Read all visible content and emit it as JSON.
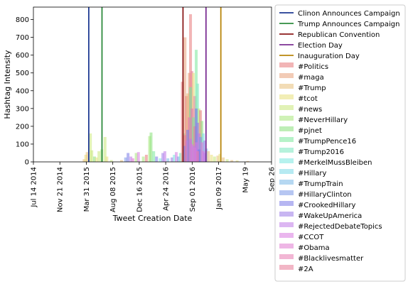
{
  "chart_data": {
    "type": "bar",
    "title": "",
    "xlabel": "Tweet Creation Date",
    "ylabel": "Hashtag Intensity",
    "x_ticks": [
      {
        "label": "Jul 14 2014",
        "date": "2014-07-14"
      },
      {
        "label": "Nov 21 2014",
        "date": "2014-11-21"
      },
      {
        "label": "Mar 31 2015",
        "date": "2015-03-31"
      },
      {
        "label": "Aug 08 2015",
        "date": "2015-08-08"
      },
      {
        "label": "Dec 16 2015",
        "date": "2015-12-16"
      },
      {
        "label": "Apr 24 2016",
        "date": "2016-04-24"
      },
      {
        "label": "Sep 01 2016",
        "date": "2016-09-01"
      },
      {
        "label": "Jan 09 2017",
        "date": "2017-01-09"
      },
      {
        "label": "May 19",
        "date": "2017-05-19"
      },
      {
        "label": "Sep 26",
        "date": "2017-09-26"
      }
    ],
    "xlim": [
      "2014-07-14",
      "2017-09-26"
    ],
    "ylim": [
      0,
      870
    ],
    "y_ticks": [
      0,
      100,
      200,
      300,
      400,
      500,
      600,
      700,
      800
    ],
    "grid": false,
    "legend_position": "outside-right",
    "events": [
      {
        "name": "Clinon Announces Campaign",
        "date": "2015-04-12",
        "color": "#1f3a93"
      },
      {
        "name": "Trump Announces Campaign",
        "date": "2015-06-16",
        "color": "#2e8b3e"
      },
      {
        "name": "Republican Convention",
        "date": "2016-07-18",
        "color": "#8b1a1a"
      },
      {
        "name": "Election Day",
        "date": "2016-11-08",
        "color": "#7b2f93"
      },
      {
        "name": "Inauguration Day",
        "date": "2017-01-20",
        "color": "#b8860b"
      }
    ],
    "series": [
      {
        "name": "#Politics",
        "color": "#e8787a",
        "values": [
          [
            0,
            0,
            0,
            5,
            0,
            0,
            0,
            0,
            0,
            8,
            10,
            0,
            0,
            0,
            0,
            0,
            0,
            0,
            0,
            0,
            20,
            25,
            30,
            40,
            20,
            15,
            30,
            35,
            40,
            35,
            35,
            40,
            30,
            25,
            35,
            45,
            55,
            25,
            10,
            5,
            0,
            0,
            0,
            0,
            0,
            0,
            0,
            0,
            0,
            0
          ]
        ]
      },
      {
        "name": "#maga",
        "color": "#e8a07a",
        "values": [
          [
            0,
            0,
            0,
            0,
            0,
            0,
            0,
            0,
            0,
            0,
            0,
            0,
            0,
            0,
            0,
            0,
            0,
            0,
            0,
            0,
            0,
            0,
            0,
            0,
            0,
            0,
            0,
            0,
            0,
            0,
            0,
            0,
            0,
            0,
            0,
            0,
            0,
            0,
            0,
            0,
            0,
            0,
            0,
            0,
            0,
            0,
            0,
            0,
            0,
            0
          ]
        ]
      },
      {
        "name": "#Trump",
        "color": "#e8c07a",
        "values": [
          [
            0
          ]
        ]
      },
      {
        "name": "#tcot",
        "color": "#e8e07a",
        "values": [
          [
            0
          ]
        ]
      },
      {
        "name": "#news",
        "color": "#c8e87a",
        "values": [
          [
            0
          ]
        ]
      },
      {
        "name": "#NeverHillary",
        "color": "#a8e87a",
        "values": [
          [
            0
          ]
        ]
      },
      {
        "name": "#pjnet",
        "color": "#88e07a",
        "values": [
          [
            0
          ]
        ]
      },
      {
        "name": "#TrumpPence16",
        "color": "#7ae89a",
        "values": [
          [
            0
          ]
        ]
      },
      {
        "name": "#Trump2016",
        "color": "#7ae8c0",
        "values": [
          [
            0
          ]
        ]
      },
      {
        "name": "#MerkelMussBleiben",
        "color": "#7ae8e0",
        "values": [
          [
            0
          ]
        ]
      },
      {
        "name": "#Hillary",
        "color": "#7ad8e8",
        "values": [
          [
            0
          ]
        ]
      },
      {
        "name": "#TrumpTrain",
        "color": "#7ab8e8",
        "values": [
          [
            0
          ]
        ]
      },
      {
        "name": "#HillaryClinton",
        "color": "#7a98e8",
        "values": [
          [
            0
          ]
        ]
      },
      {
        "name": "#CrookedHillary",
        "color": "#7a7ae8",
        "values": [
          [
            0
          ]
        ]
      },
      {
        "name": "#WakeUpAmerica",
        "color": "#9a7ae8",
        "values": [
          [
            0
          ]
        ]
      },
      {
        "name": "#RejectedDebateTopics",
        "color": "#c07ae8",
        "values": [
          [
            0
          ]
        ]
      },
      {
        "name": "#CCOT",
        "color": "#d87ae0",
        "values": [
          [
            0
          ]
        ]
      },
      {
        "name": "#Obama",
        "color": "#e07ad0",
        "values": [
          [
            0
          ]
        ]
      },
      {
        "name": "#Blacklivesmatter",
        "color": "#e87ab0",
        "values": [
          [
            0
          ]
        ]
      },
      {
        "name": "#2A",
        "color": "#e87a98",
        "values": [
          [
            0
          ]
        ]
      }
    ],
    "bars": [
      {
        "date": "2015-03-20",
        "value": 15,
        "s": 2
      },
      {
        "date": "2015-03-28",
        "value": 40,
        "s": 3
      },
      {
        "date": "2015-04-04",
        "value": 55,
        "s": 2
      },
      {
        "date": "2015-04-20",
        "value": 160,
        "s": 4
      },
      {
        "date": "2015-04-27",
        "value": 65,
        "s": 4
      },
      {
        "date": "2015-05-10",
        "value": 30,
        "s": 6
      },
      {
        "date": "2015-05-20",
        "value": 25,
        "s": 3
      },
      {
        "date": "2015-06-01",
        "value": 60,
        "s": 4
      },
      {
        "date": "2015-06-15",
        "value": 70,
        "s": 5
      },
      {
        "date": "2015-07-01",
        "value": 140,
        "s": 4
      },
      {
        "date": "2015-07-10",
        "value": 30,
        "s": 3
      },
      {
        "date": "2015-08-01",
        "value": 10,
        "s": 4
      },
      {
        "date": "2015-09-20",
        "value": 10,
        "s": 2
      },
      {
        "date": "2015-10-10",
        "value": 25,
        "s": 12
      },
      {
        "date": "2015-10-22",
        "value": 50,
        "s": 13
      },
      {
        "date": "2015-11-05",
        "value": 30,
        "s": 15
      },
      {
        "date": "2015-11-15",
        "value": 20,
        "s": 17
      },
      {
        "date": "2015-12-01",
        "value": 50,
        "s": 5
      },
      {
        "date": "2015-12-12",
        "value": 55,
        "s": 16
      },
      {
        "date": "2016-01-05",
        "value": 30,
        "s": 5
      },
      {
        "date": "2016-01-20",
        "value": 40,
        "s": 0
      },
      {
        "date": "2016-02-05",
        "value": 145,
        "s": 5
      },
      {
        "date": "2016-02-12",
        "value": 165,
        "s": 6
      },
      {
        "date": "2016-02-25",
        "value": 60,
        "s": 7
      },
      {
        "date": "2016-03-10",
        "value": 30,
        "s": 13
      },
      {
        "date": "2016-03-28",
        "value": 20,
        "s": 9
      },
      {
        "date": "2016-04-10",
        "value": 50,
        "s": 14
      },
      {
        "date": "2016-04-20",
        "value": 60,
        "s": 15
      },
      {
        "date": "2016-05-05",
        "value": 20,
        "s": 11
      },
      {
        "date": "2016-05-25",
        "value": 25,
        "s": 14
      },
      {
        "date": "2016-06-05",
        "value": 40,
        "s": 9
      },
      {
        "date": "2016-06-15",
        "value": 55,
        "s": 16
      },
      {
        "date": "2016-06-25",
        "value": 30,
        "s": 12
      },
      {
        "date": "2016-07-05",
        "value": 50,
        "s": 8
      },
      {
        "date": "2016-07-15",
        "value": 450,
        "s": 0
      },
      {
        "date": "2016-07-22",
        "value": 160,
        "s": 7
      },
      {
        "date": "2016-07-28",
        "value": 700,
        "s": 1
      },
      {
        "date": "2016-08-04",
        "value": 370,
        "s": 0
      },
      {
        "date": "2016-08-10",
        "value": 385,
        "s": 2
      },
      {
        "date": "2016-08-17",
        "value": 500,
        "s": 1
      },
      {
        "date": "2016-08-24",
        "value": 830,
        "s": 0
      },
      {
        "date": "2016-08-31",
        "value": 510,
        "s": 19
      },
      {
        "date": "2016-09-07",
        "value": 500,
        "s": 3
      },
      {
        "date": "2016-09-14",
        "value": 370,
        "s": 18
      },
      {
        "date": "2016-09-21",
        "value": 630,
        "s": 7
      },
      {
        "date": "2016-09-28",
        "value": 440,
        "s": 8
      },
      {
        "date": "2016-10-05",
        "value": 300,
        "s": 4
      },
      {
        "date": "2016-10-12",
        "value": 290,
        "s": 0
      },
      {
        "date": "2016-10-19",
        "value": 230,
        "s": 6
      },
      {
        "date": "2016-10-26",
        "value": 160,
        "s": 10
      },
      {
        "date": "2016-11-02",
        "value": 120,
        "s": 14
      },
      {
        "date": "2016-11-10",
        "value": 75,
        "s": 11
      },
      {
        "date": "2016-11-20",
        "value": 60,
        "s": 2
      },
      {
        "date": "2016-12-05",
        "value": 40,
        "s": 3
      },
      {
        "date": "2016-12-20",
        "value": 30,
        "s": 4
      },
      {
        "date": "2017-01-05",
        "value": 35,
        "s": 2
      },
      {
        "date": "2017-01-15",
        "value": 45,
        "s": 3
      },
      {
        "date": "2017-02-01",
        "value": 25,
        "s": 2
      },
      {
        "date": "2017-02-20",
        "value": 15,
        "s": 4
      },
      {
        "date": "2017-03-15",
        "value": 10,
        "s": 2
      },
      {
        "date": "2017-04-10",
        "value": 8,
        "s": 3
      },
      {
        "date": "2017-06-01",
        "value": 5,
        "s": 2
      }
    ],
    "overlay_bars": [
      {
        "date": "2016-08-24",
        "value": 420,
        "s": 7
      },
      {
        "date": "2016-08-31",
        "value": 300,
        "s": 18
      },
      {
        "date": "2016-09-07",
        "value": 250,
        "s": 7
      },
      {
        "date": "2016-09-14",
        "value": 200,
        "s": 19
      },
      {
        "date": "2016-09-21",
        "value": 300,
        "s": 13
      },
      {
        "date": "2016-09-28",
        "value": 220,
        "s": 14
      },
      {
        "date": "2016-10-05",
        "value": 160,
        "s": 15
      },
      {
        "date": "2016-10-12",
        "value": 140,
        "s": 12
      },
      {
        "date": "2016-10-19",
        "value": 110,
        "s": 16
      },
      {
        "date": "2016-08-17",
        "value": 250,
        "s": 18
      },
      {
        "date": "2016-08-10",
        "value": 180,
        "s": 13
      },
      {
        "date": "2016-08-04",
        "value": 120,
        "s": 15
      },
      {
        "date": "2016-07-28",
        "value": 150,
        "s": 19
      },
      {
        "date": "2016-07-22",
        "value": 90,
        "s": 13
      },
      {
        "date": "2016-09-07",
        "value": 90,
        "s": 15
      },
      {
        "date": "2016-09-21",
        "value": 110,
        "s": 16
      },
      {
        "date": "2016-10-05",
        "value": 70,
        "s": 13
      },
      {
        "date": "2016-10-26",
        "value": 60,
        "s": 16
      },
      {
        "date": "2016-11-02",
        "value": 50,
        "s": 15
      },
      {
        "date": "2016-08-24",
        "value": 130,
        "s": 15
      },
      {
        "date": "2016-08-31",
        "value": 100,
        "s": 16
      },
      {
        "date": "2016-09-14",
        "value": 80,
        "s": 16
      },
      {
        "date": "2016-09-28",
        "value": 60,
        "s": 18
      }
    ]
  }
}
